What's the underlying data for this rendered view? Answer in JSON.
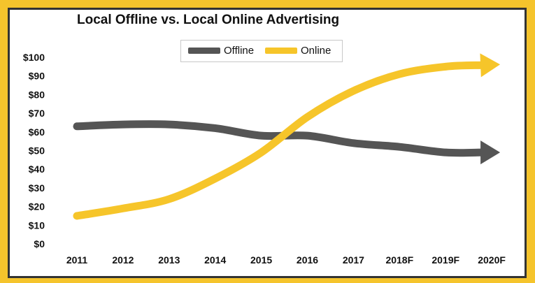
{
  "chart_data": {
    "type": "line",
    "title": "Local Offline vs. Local Online Advertising",
    "categories": [
      "2011",
      "2012",
      "2013",
      "2014",
      "2015",
      "2016",
      "2017",
      "2018F",
      "2019F",
      "2020F"
    ],
    "y_tick_labels": [
      "$0",
      "$10",
      "$20",
      "$30",
      "$40",
      "$50",
      "$60",
      "$70",
      "$80",
      "$90",
      "$100"
    ],
    "ylim": [
      0,
      100
    ],
    "grid": false,
    "legend": "top-center",
    "series": [
      {
        "name": "Offline",
        "color": "#555555",
        "values": [
          63,
          64,
          64,
          62,
          58,
          58,
          54,
          52,
          49,
          49
        ]
      },
      {
        "name": "Online",
        "color": "#f6c52a",
        "values": [
          15,
          19,
          24,
          35,
          49,
          68,
          82,
          91,
          95,
          96
        ]
      }
    ]
  },
  "colors": {
    "background": "#f5c42c",
    "border": "#333333",
    "panel": "#ffffff"
  }
}
